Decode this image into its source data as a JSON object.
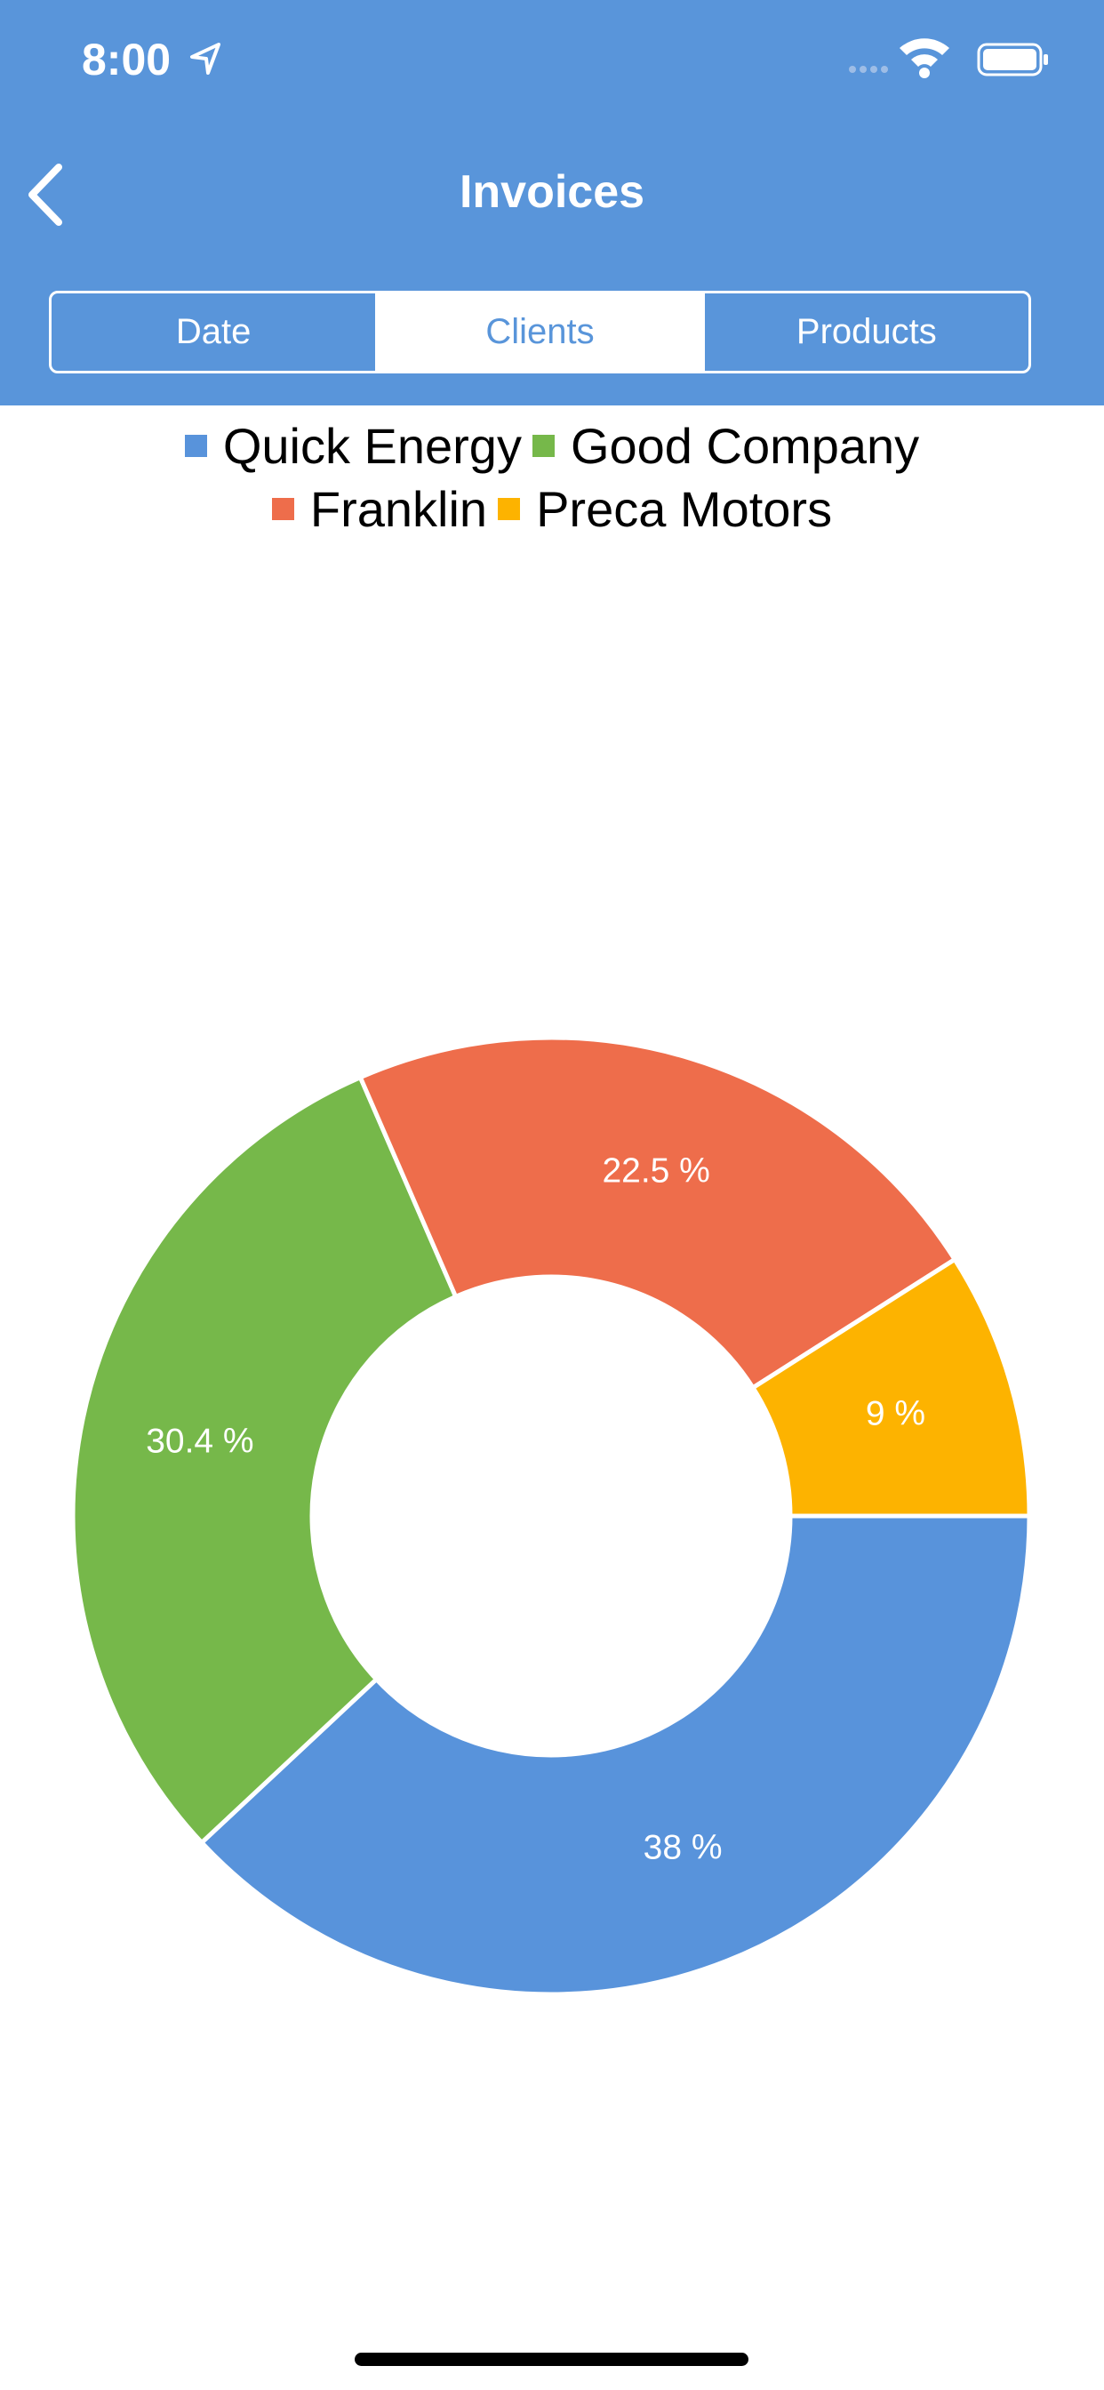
{
  "status_bar": {
    "time": "8:00"
  },
  "nav": {
    "title": "Invoices"
  },
  "tabs": [
    "Date",
    "Clients",
    "Products"
  ],
  "chart_data": {
    "type": "pie",
    "categories": [
      "Quick Energy",
      "Good Company",
      "Franklin",
      "Preca Motors"
    ],
    "values": [
      38,
      30.4,
      22.5,
      9
    ],
    "value_labels": [
      "38 %",
      "30.4 %",
      "22.5 %",
      "9 %"
    ],
    "colors": [
      "#5893db",
      "#76b84a",
      "#ee6d4b",
      "#fdb300"
    ]
  }
}
